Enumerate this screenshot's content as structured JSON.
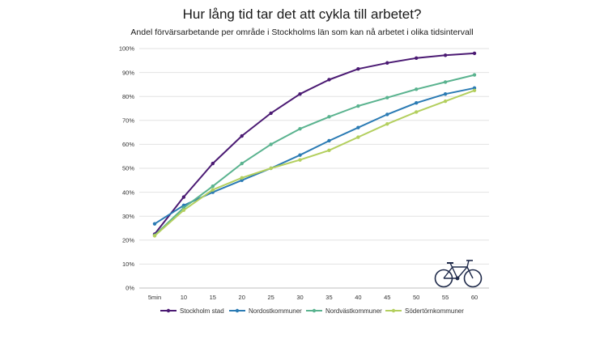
{
  "chart_data": {
    "type": "line",
    "title": "Hur lång tid tar det att cykla till arbetet?",
    "subtitle": "Andel förvärsarbetande per område i Stockholms län som kan nå arbetet i olika tidsintervall",
    "categories": [
      "5min",
      "10",
      "15",
      "20",
      "25",
      "30",
      "35",
      "40",
      "45",
      "50",
      "55",
      "60"
    ],
    "ylim": [
      0,
      100
    ],
    "yticks": [
      "0%",
      "10%",
      "20%",
      "30%",
      "40%",
      "50%",
      "60%",
      "70%",
      "80%",
      "90%",
      "100%"
    ],
    "grid": true,
    "legend_position": "bottom",
    "xlabel": "",
    "ylabel": "",
    "series": [
      {
        "name": "Stockholm stad",
        "color": "#4b1a73",
        "values": [
          22.5,
          38,
          52,
          63.5,
          73,
          81,
          87,
          91.5,
          94,
          96,
          97.2,
          98
        ]
      },
      {
        "name": "Nordostkommuner",
        "color": "#2b7bb4",
        "values": [
          26.8,
          34.5,
          40,
          45,
          50,
          55.5,
          61.5,
          67,
          72.5,
          77.3,
          81,
          83.5
        ]
      },
      {
        "name": "Nordvästkommuner",
        "color": "#5ab38f",
        "values": [
          22,
          33.5,
          42.5,
          52,
          60,
          66.5,
          71.5,
          76,
          79.5,
          83,
          86,
          89
        ]
      },
      {
        "name": "Södertörnkommuner",
        "color": "#b3cf5e",
        "values": [
          21.8,
          32.5,
          41,
          46,
          50,
          53.5,
          57.5,
          63,
          68.5,
          73.5,
          78,
          82.5
        ]
      }
    ]
  },
  "icons": {
    "bicycle": "bicycle-icon"
  }
}
